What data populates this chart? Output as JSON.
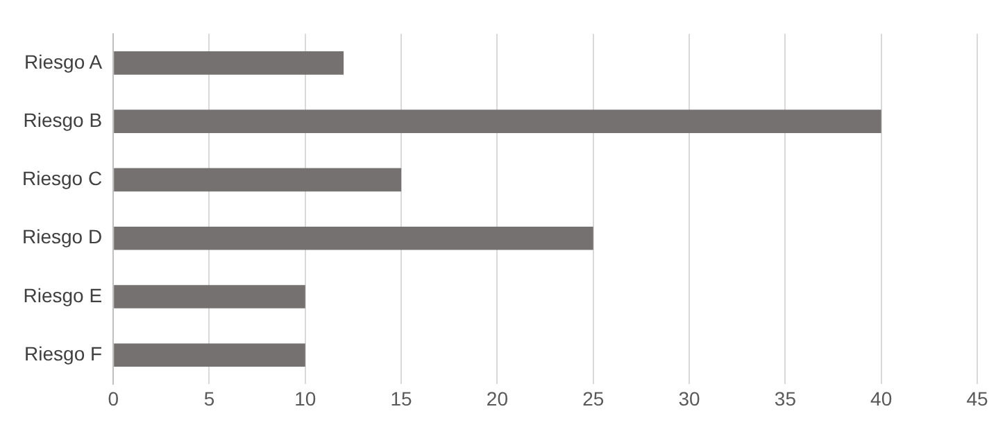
{
  "chart_data": {
    "type": "bar",
    "orientation": "horizontal",
    "categories": [
      "Riesgo A",
      "Riesgo B",
      "Riesgo C",
      "Riesgo D",
      "Riesgo E",
      "Riesgo F"
    ],
    "values": [
      12,
      40,
      15,
      25,
      10,
      10
    ],
    "color": "#767171",
    "xlim": [
      0,
      45
    ],
    "xticks": [
      0,
      5,
      10,
      15,
      20,
      25,
      30,
      35,
      40,
      45
    ],
    "grid": "x"
  }
}
